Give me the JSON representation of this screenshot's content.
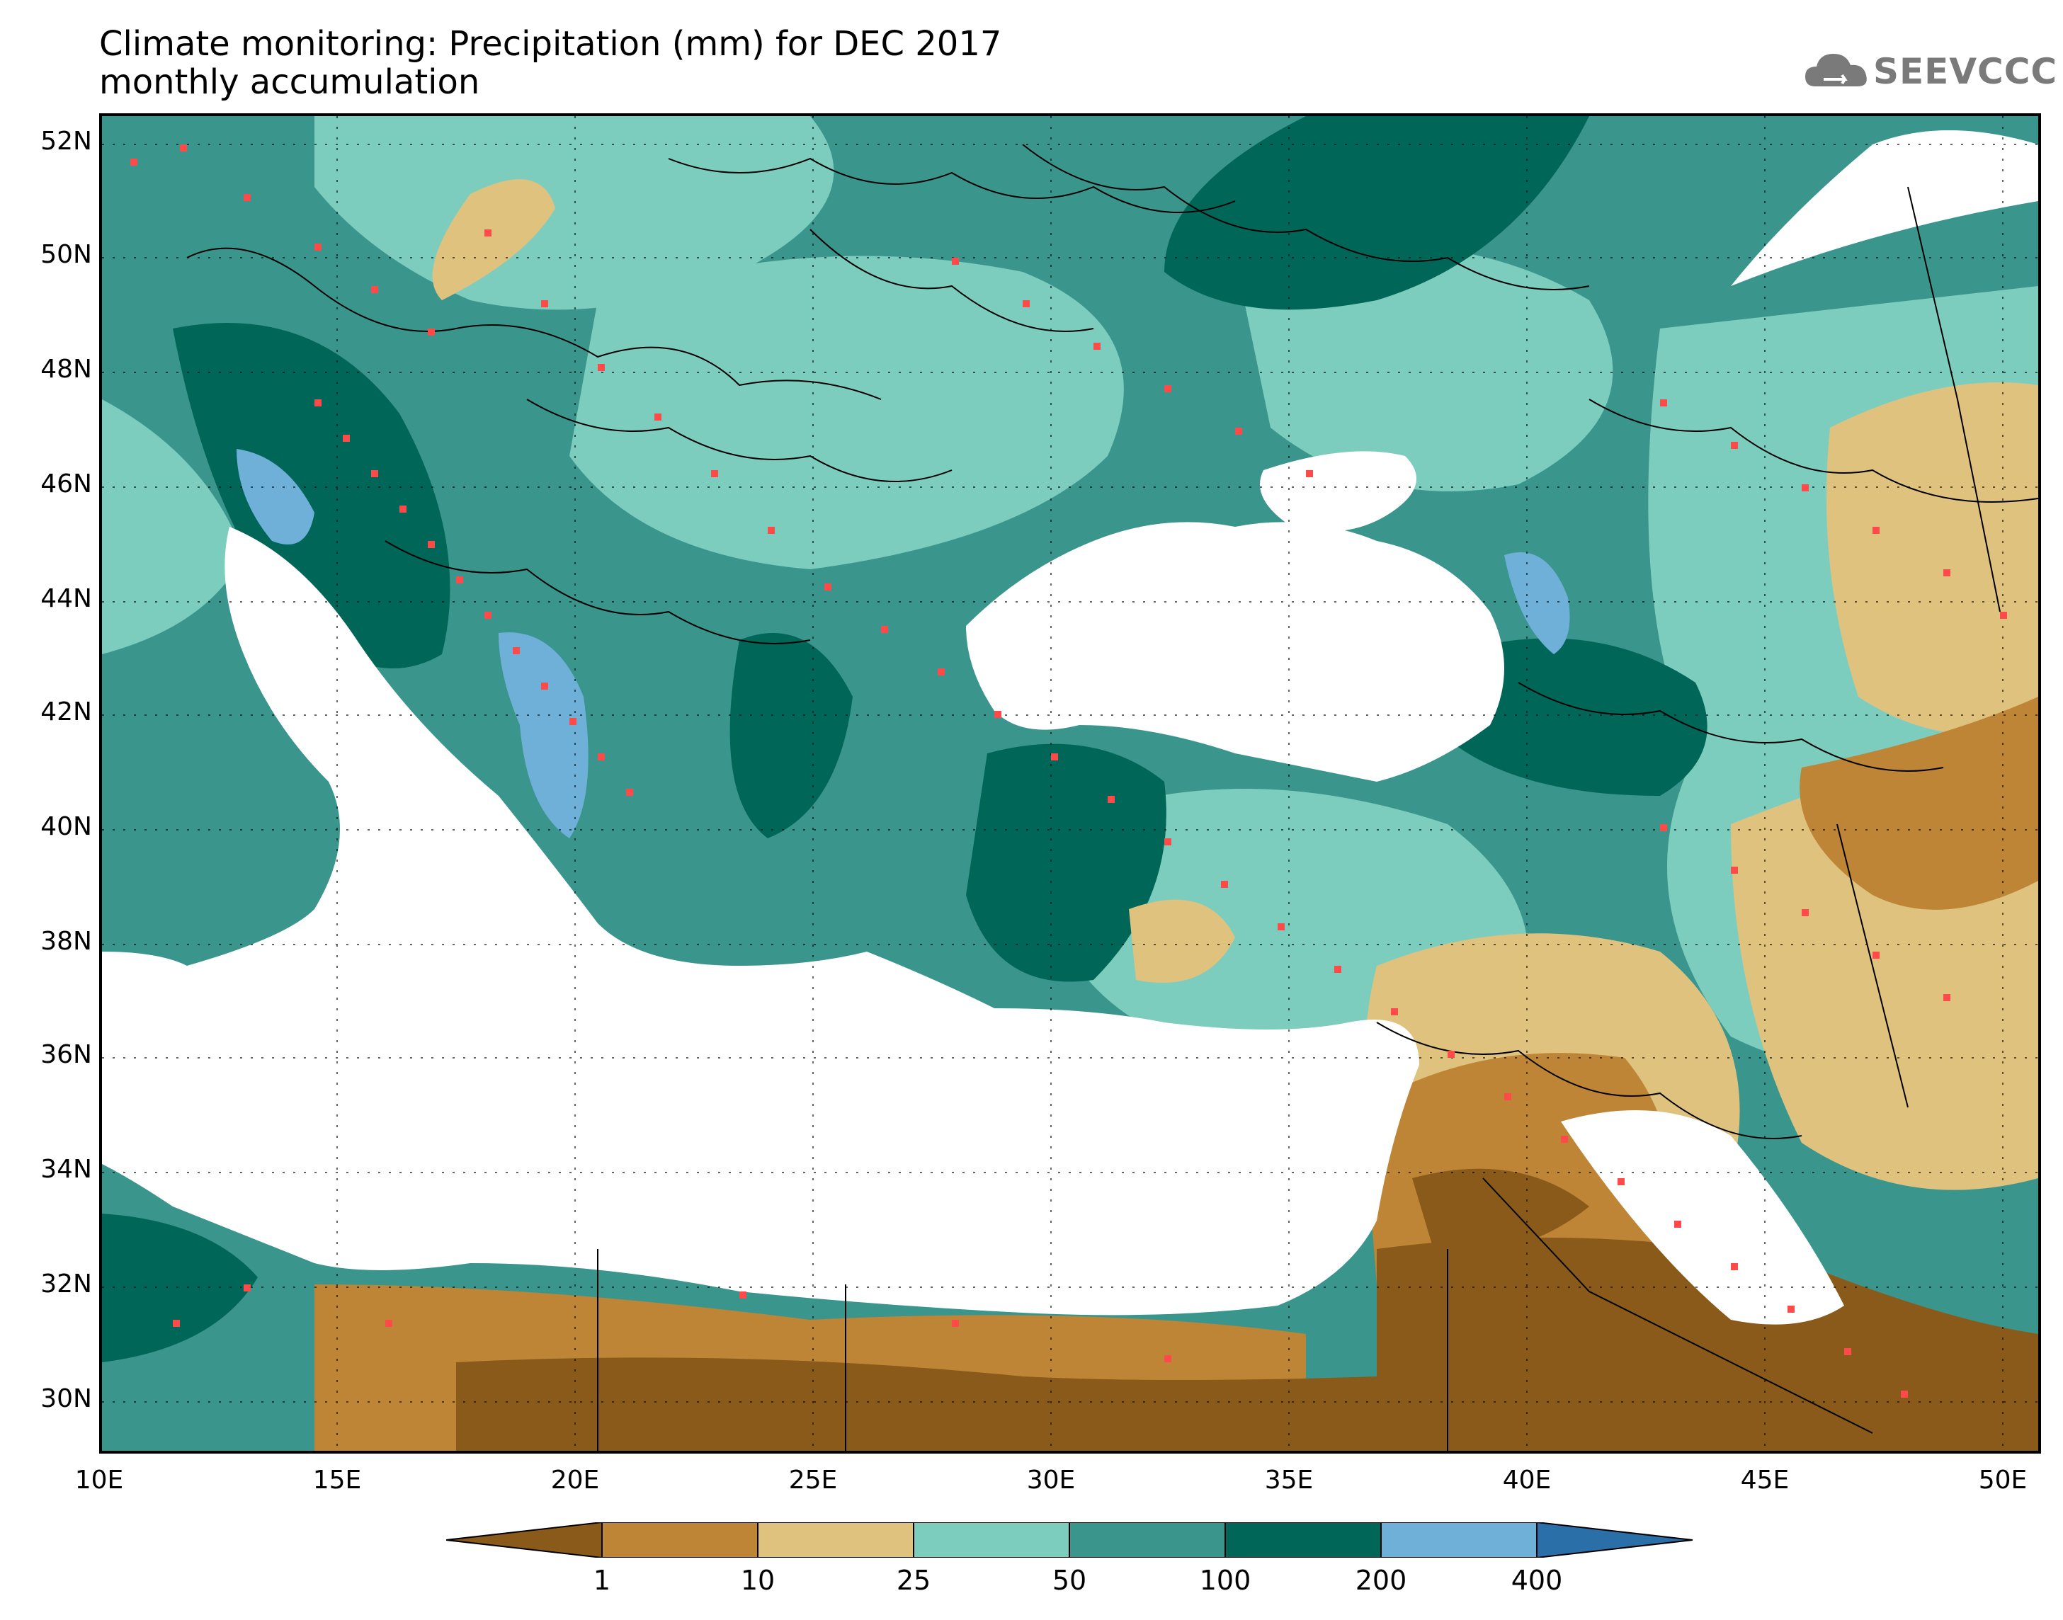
{
  "title": "Climate monitoring: Precipitation (mm) for DEC 2017",
  "subtitle": "monthly accumulation",
  "logo_text": "SEEVCCC",
  "lat_labels": [
    "52N",
    "50N",
    "48N",
    "46N",
    "44N",
    "42N",
    "40N",
    "38N",
    "36N",
    "34N",
    "32N",
    "30N"
  ],
  "lon_labels": [
    "10E",
    "15E",
    "20E",
    "25E",
    "30E",
    "35E",
    "40E",
    "45E",
    "50E"
  ],
  "colorbar": {
    "labels": [
      "1",
      "10",
      "25",
      "50",
      "100",
      "200",
      "400"
    ],
    "colors": [
      "#8a5a1a",
      "#bd8535",
      "#e0c27f",
      "#7dcdbf",
      "#3a968c",
      "#006658",
      "#6fb0d9",
      "#2a6fa8"
    ]
  },
  "palette": {
    "sea": "#ffffff",
    "station": "#ff4a4a",
    "border": "#000000"
  }
}
